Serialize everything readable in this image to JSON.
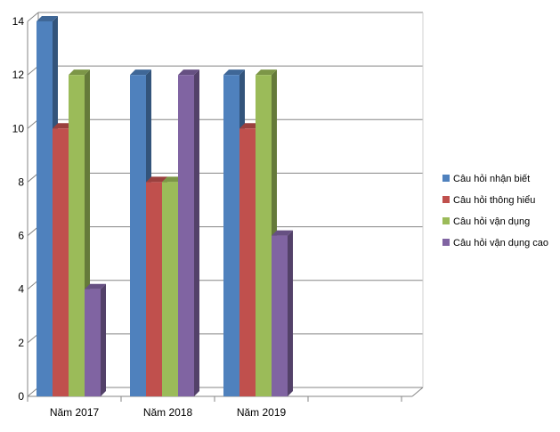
{
  "chart_data": {
    "type": "bar",
    "categories": [
      "Năm 2017",
      "Năm 2018",
      "Năm 2019"
    ],
    "series": [
      {
        "name": "Câu hỏi nhận biết",
        "values": [
          14,
          12,
          12
        ],
        "color": "#4F81BD"
      },
      {
        "name": "Câu hỏi thông hiểu",
        "values": [
          10,
          8,
          10
        ],
        "color": "#C0504D"
      },
      {
        "name": "Câu hỏi vận dụng",
        "values": [
          12,
          8,
          12
        ],
        "color": "#9BBB59"
      },
      {
        "name": "Câu hỏi vận dụng cao",
        "values": [
          4,
          12,
          6
        ],
        "color": "#8064A2"
      }
    ],
    "ylim": [
      0,
      14
    ],
    "yticks": [
      0,
      2,
      4,
      6,
      8,
      10,
      12,
      14
    ],
    "grid": true,
    "legend": "right",
    "three_d": true
  }
}
